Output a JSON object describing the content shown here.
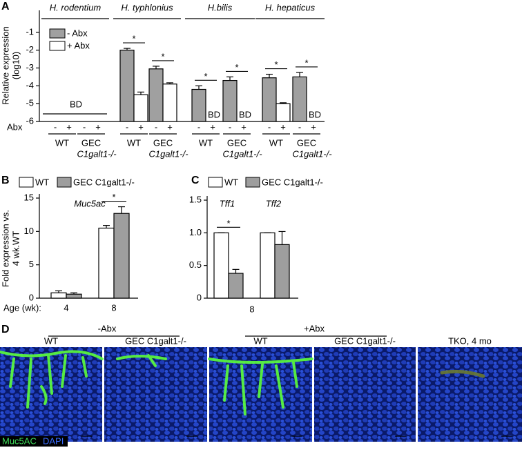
{
  "panel_labels": [
    "A",
    "B",
    "C",
    "D"
  ],
  "chart_data": [
    {
      "type": "bar",
      "y_label": "Relative expression",
      "y_label_unit": "(log10)",
      "group_titles": [
        "H. rodentium",
        "H. typhlonius",
        "H.bilis",
        "H. hepaticus"
      ],
      "categories": [
        "WT",
        "GEC",
        "WT",
        "GEC",
        "WT",
        "GEC",
        "WT",
        "GEC"
      ],
      "genotype": "C1galt1-/-",
      "treatment_label": "Abx",
      "treatment_marks": [
        "-",
        "+"
      ],
      "series": [
        {
          "name": "- Abx",
          "color": "#a0a0a0",
          "values": [
            null,
            null,
            -2.0,
            -3.05,
            -4.2,
            -3.7,
            -3.55,
            -3.5
          ],
          "errors": [
            null,
            null,
            0.1,
            0.15,
            0.2,
            0.2,
            0.2,
            0.25
          ]
        },
        {
          "name": "+ Abx",
          "color": "#ffffff",
          "values": [
            null,
            null,
            -4.5,
            -3.9,
            null,
            null,
            -5.0,
            null
          ],
          "errors": [
            null,
            null,
            0.15,
            0.07,
            null,
            null,
            0.05,
            null
          ]
        }
      ],
      "ylim": [
        -6,
        0
      ],
      "yticks": [
        -1,
        -2,
        -3,
        -4,
        -5,
        -6
      ],
      "bd_label": "BD",
      "significance": {
        "label": "*",
        "groups": [
          2,
          3,
          4,
          5,
          6,
          7
        ]
      }
    },
    {
      "type": "bar",
      "title": "Muc5ac",
      "y_label": "Fold expression vs.",
      "y_label_2": "4 wk.WT",
      "x_label": "Age (wk):",
      "categories": [
        "4",
        "8"
      ],
      "series": [
        {
          "name": "WT",
          "color": "#ffffff",
          "values": [
            0.8,
            10.5
          ],
          "errors": [
            0.3,
            0.4
          ]
        },
        {
          "name": "GEC C1galt1-/-",
          "color": "#9e9e9e",
          "values": [
            0.6,
            12.7
          ],
          "errors": [
            0.2,
            1.0
          ]
        }
      ],
      "ylim": [
        0,
        15
      ],
      "yticks": [
        0,
        5,
        10,
        15
      ],
      "significance": {
        "label": "*",
        "groups": [
          1
        ]
      }
    },
    {
      "type": "bar",
      "x_label": "8",
      "categories": [
        "Tff1",
        "Tff2"
      ],
      "series": [
        {
          "name": "WT",
          "color": "#ffffff",
          "values": [
            1.0,
            1.0
          ],
          "errors": [
            0,
            0
          ]
        },
        {
          "name": "GEC C1galt1-/-",
          "color": "#9e9e9e",
          "values": [
            0.38,
            0.82
          ],
          "errors": [
            0.06,
            0.2
          ]
        }
      ],
      "ylim": [
        0,
        1.5
      ],
      "yticks": [
        0,
        0.5,
        {
          "value": 1.0,
          "label": "1.0"
        },
        1.5
      ],
      "significance": {
        "label": "*",
        "groups": [
          0
        ]
      }
    }
  ],
  "micrographs": {
    "treatments": [
      "-Abx",
      "+Abx"
    ],
    "images": [
      "WT",
      "GEC C1galt1-/-",
      "WT",
      "GEC C1galt1-/-",
      "TKO, 4 mo"
    ],
    "stains": [
      "Muc5AC",
      "DAPI"
    ]
  }
}
